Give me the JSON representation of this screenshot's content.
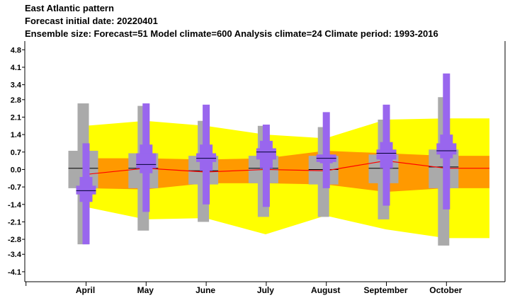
{
  "header": {
    "line1": "East Atlantic pattern",
    "line2": " Forecast initial date: 20220401",
    "line3": "Ensemble size: Forecast=51 Model climate=600 Analysis climate=24   Climate period: 1993-2016"
  },
  "chart_data": {
    "type": "boxplot",
    "title": "East Atlantic pattern",
    "categories": [
      "April",
      "May",
      "June",
      "July",
      "August",
      "September",
      "October"
    ],
    "yticks": [
      "4.8",
      "4.1",
      "3.4",
      "2.8",
      "2.1",
      "1.4",
      "0.7",
      "0.0",
      "-0.7",
      "-1.4",
      "-2.1",
      "-2.8",
      "-3.4",
      "-4.1"
    ],
    "ylim": [
      -4.5,
      5.15
    ],
    "grid": false,
    "climate_band_outer": {
      "color": "#ffff00",
      "upper": [
        1.75,
        1.95,
        1.75,
        1.4,
        1.25,
        2.0,
        2.05
      ],
      "lower": [
        -1.5,
        -2.0,
        -1.95,
        -2.6,
        -1.85,
        -2.4,
        -2.75
      ]
    },
    "climate_band_inner": {
      "color": "#ff9900",
      "upper": [
        0.45,
        0.45,
        0.4,
        0.45,
        0.75,
        0.65,
        0.55
      ],
      "lower": [
        -0.75,
        -0.8,
        -0.55,
        -0.55,
        -0.6,
        -0.9,
        -0.75
      ]
    },
    "climate_median": {
      "color": "#ff0000",
      "values": [
        -0.2,
        0.05,
        -0.1,
        0.0,
        -0.05,
        0.35,
        0.05
      ]
    },
    "analysis_climate": {
      "color": "#aaaaaa",
      "min": [
        -3.0,
        -2.45,
        -2.1,
        -1.9,
        -1.9,
        -2.0,
        -3.05
      ],
      "q1": [
        -0.75,
        -0.75,
        -0.6,
        -0.55,
        -0.6,
        -0.55,
        -0.75
      ],
      "median": [
        0.05,
        0.05,
        -0.05,
        0.05,
        0.0,
        0.05,
        0.1
      ],
      "q3": [
        0.75,
        0.65,
        0.55,
        0.55,
        0.55,
        0.6,
        0.8
      ],
      "max": [
        2.65,
        2.55,
        1.95,
        1.75,
        1.7,
        2.0,
        2.9
      ]
    },
    "forecast": {
      "color": "#9966ee",
      "min": [
        -3.0,
        -1.7,
        -1.4,
        -1.5,
        -0.75,
        -1.45,
        -1.6
      ],
      "p10": [
        -1.3,
        -0.1,
        -0.05,
        -0.05,
        -0.05,
        -0.05,
        -0.05
      ],
      "p25": [
        -1.3,
        -0.1,
        -0.05,
        -0.05,
        0.25,
        -0.05,
        -0.05
      ],
      "q1": [
        -1.3,
        -0.15,
        -0.05,
        0.05,
        0.25,
        0.05,
        0.45
      ],
      "median": [
        -0.85,
        0.2,
        0.45,
        0.7,
        0.45,
        0.65,
        0.75
      ],
      "q3": [
        -0.3,
        1.0,
        1.0,
        1.15,
        0.6,
        1.1,
        1.4
      ],
      "max": [
        1.05,
        2.65,
        2.6,
        1.8,
        2.3,
        2.6,
        3.85
      ]
    }
  }
}
